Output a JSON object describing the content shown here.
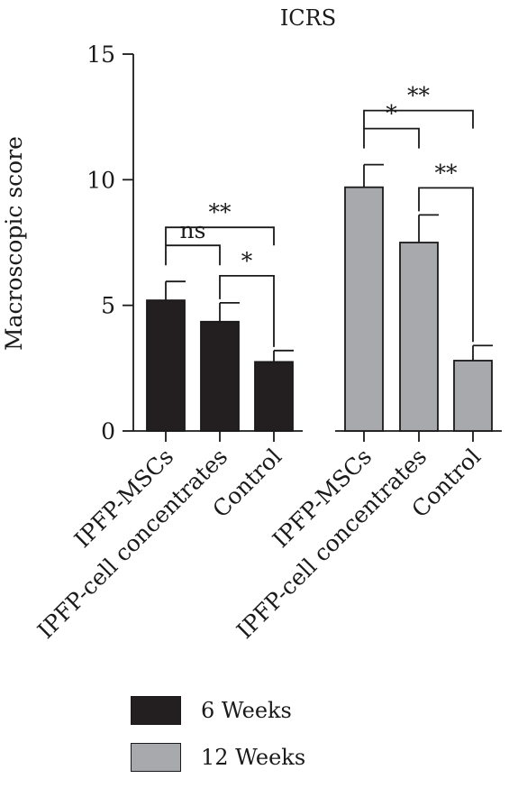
{
  "chart_data": {
    "type": "bar",
    "title": "ICRS",
    "ylabel": "Macroscopic score",
    "xlabel": "",
    "ylim": [
      0,
      15
    ],
    "yticks": [
      0,
      5,
      10,
      15
    ],
    "categories": [
      "IPFP-MSCs",
      "IPFP-cell concentrates",
      "Control"
    ],
    "series": [
      {
        "name": "6 Weeks",
        "color": "#231f20",
        "values": [
          5.2,
          4.35,
          2.75
        ],
        "errors": [
          0.75,
          0.75,
          0.45
        ],
        "significance": [
          {
            "from": 0,
            "to": 1,
            "label": "ns"
          },
          {
            "from": 1,
            "to": 2,
            "label": "*"
          },
          {
            "from": 0,
            "to": 2,
            "label": "**"
          }
        ]
      },
      {
        "name": "12 Weeks",
        "color": "#a7a9ac",
        "values": [
          9.7,
          7.5,
          2.8
        ],
        "errors": [
          0.9,
          1.1,
          0.6
        ],
        "significance": [
          {
            "from": 0,
            "to": 1,
            "label": "*"
          },
          {
            "from": 1,
            "to": 2,
            "label": "**"
          },
          {
            "from": 0,
            "to": 2,
            "label": "**"
          }
        ]
      }
    ],
    "legend_position": "bottom",
    "grid": false
  }
}
